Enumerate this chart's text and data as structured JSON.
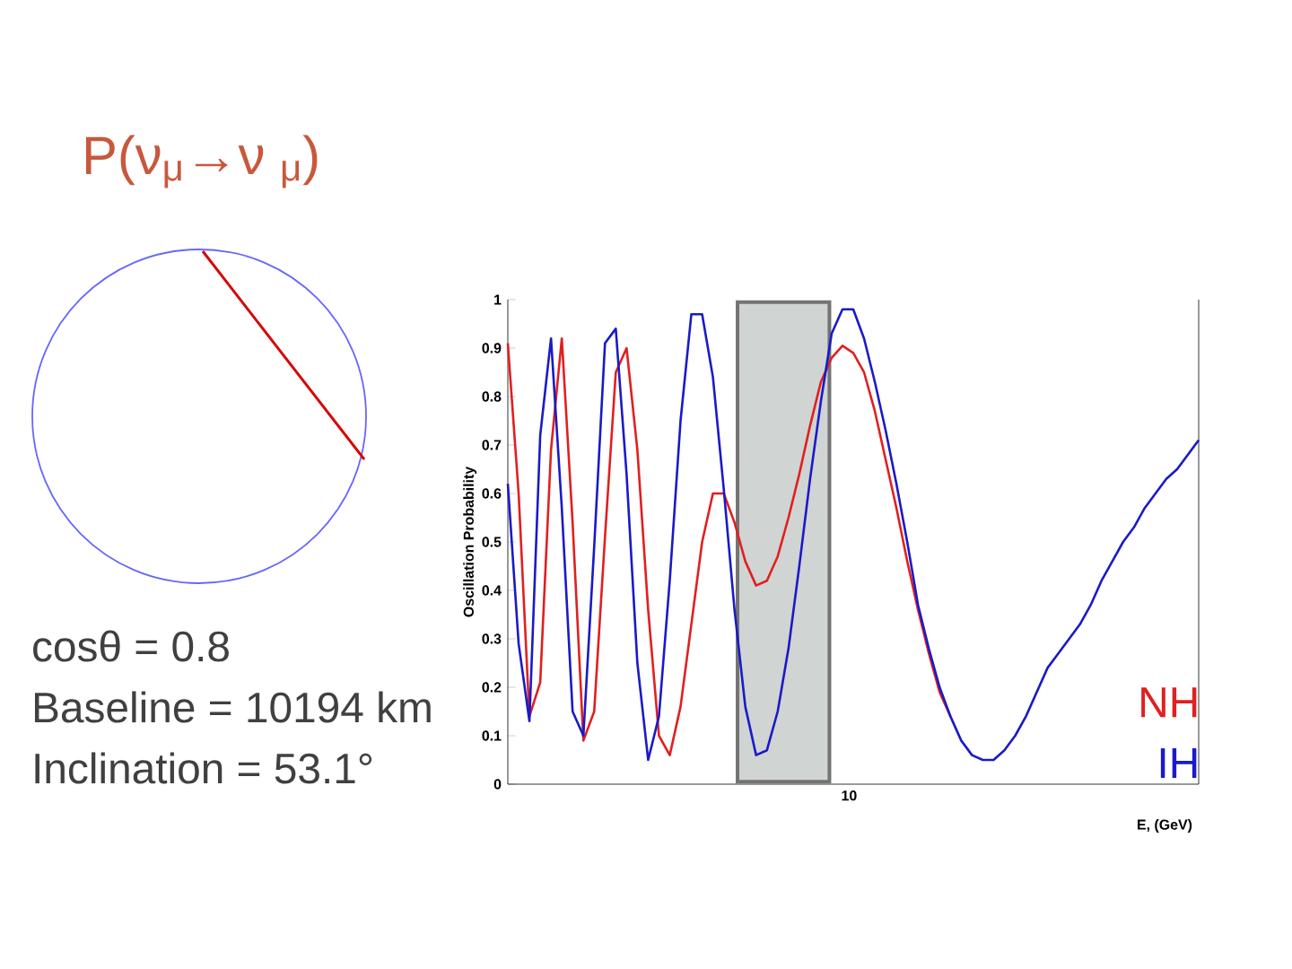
{
  "chart_data": {
    "type": "line",
    "title": "P(ν$_{μ}$→ν $_{μ}$)",
    "xlabel": "E, (GeV)",
    "ylabel": "Oscillation Probability",
    "annotations": [
      "cosθ = 0.8",
      "Baseline = 10194 km",
      "Inclination = 53.1°",
      "10"
    ],
    "categories": [
      null,
      null,
      null,
      null,
      null,
      null,
      null,
      null,
      null,
      null,
      null,
      null,
      null,
      null,
      null,
      null,
      null,
      null,
      null,
      null,
      null,
      null,
      null,
      null,
      null,
      null,
      null,
      null,
      null,
      null,
      null,
      null,
      null,
      null,
      null,
      null,
      null,
      null,
      null,
      null,
      null,
      null,
      null,
      null,
      null,
      null,
      null,
      null,
      null,
      null,
      null,
      null,
      null,
      null,
      null,
      null,
      null,
      null,
      null,
      null,
      null,
      null,
      null,
      null,
      null
    ],
    "ylim": [
      0,
      1
    ],
    "yticks": [
      0,
      0.1,
      0.2,
      0.3,
      0.4,
      0.5,
      0.6,
      0.7,
      0.8,
      0.9,
      1
    ],
    "legend": "bottom right",
    "series": [
      {
        "name": "NH",
        "color": "#e02020",
        "values": [
          0.91,
          0.6,
          0.14,
          0.21,
          0.69,
          0.92,
          0.54,
          0.09,
          0.15,
          0.51,
          0.85,
          0.9,
          0.69,
          0.36,
          0.1,
          0.06,
          0.16,
          0.33,
          0.5,
          0.6,
          0.6,
          0.54,
          0.46,
          0.41,
          0.42,
          0.47,
          0.55,
          0.64,
          0.74,
          0.83,
          0.88,
          0.905,
          0.89,
          0.85,
          0.77,
          0.67,
          0.57,
          0.46,
          0.36,
          0.27,
          0.19,
          0.14,
          null,
          null,
          null,
          null,
          null,
          null,
          null,
          null,
          null,
          null,
          null,
          null,
          null,
          null,
          null,
          null,
          null,
          null,
          null,
          null,
          null,
          null,
          null
        ]
      },
      {
        "name": "IH",
        "color": "#1a1ac8",
        "values": [
          0.62,
          0.29,
          0.13,
          0.72,
          0.92,
          0.57,
          0.15,
          0.1,
          0.49,
          0.91,
          0.94,
          0.64,
          0.25,
          0.05,
          0.14,
          0.42,
          0.75,
          0.97,
          0.97,
          0.84,
          0.61,
          0.36,
          0.16,
          0.06,
          0.07,
          0.15,
          0.28,
          0.45,
          0.63,
          0.79,
          0.93,
          0.98,
          0.98,
          0.92,
          0.83,
          0.73,
          0.62,
          0.5,
          0.37,
          0.28,
          0.2,
          0.14,
          0.09,
          0.06,
          0.05,
          0.05,
          0.07,
          0.1,
          0.14,
          0.19,
          0.24,
          0.27,
          0.3,
          0.33,
          0.37,
          0.42,
          0.46,
          0.5,
          0.53,
          0.57,
          0.6,
          0.63,
          0.65,
          0.68,
          0.71
        ]
      }
    ]
  }
}
